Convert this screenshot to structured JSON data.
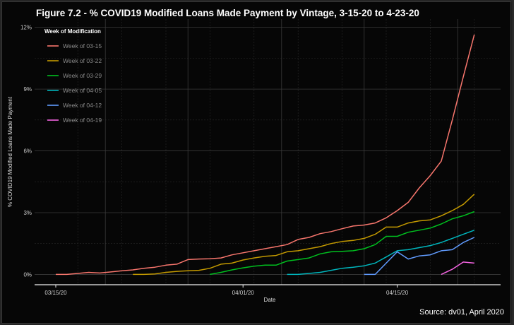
{
  "title": "Figure 7.2 - % COVID19 Modified Loans Made Payment by Vintage, 3-15-20 to 4-23-20",
  "source": "Source: dv01, April 2020",
  "chart_data": {
    "type": "line",
    "title": "Figure 7.2 - % COVID19 Modified Loans Made Payment by Vintage, 3-15-20 to 4-23-20",
    "xlabel": "Date",
    "ylabel": "% COVID19 Modified Loans Made Payment",
    "x_start": "2020-03-15",
    "x_end": "2020-04-23",
    "x_ticks": [
      {
        "date": "2020-03-15",
        "label": "03/15/20"
      },
      {
        "date": "2020-04-01",
        "label": "04/01/20"
      },
      {
        "date": "2020-04-15",
        "label": "04/15/20"
      }
    ],
    "y_ticks": [
      0,
      3,
      6,
      9,
      12
    ],
    "y_tick_labels": [
      "0%",
      "3%",
      "6%",
      "9%",
      "12%"
    ],
    "ylim": [
      -0.5,
      12.4
    ],
    "grid": true,
    "legend": {
      "title": "Week of Modification",
      "position": "top-left"
    },
    "series": [
      {
        "name": "Week of 03-15",
        "color": "#f8766d",
        "x": [
          "2020-03-15",
          "2020-03-16",
          "2020-03-17",
          "2020-03-18",
          "2020-03-19",
          "2020-03-20",
          "2020-03-21",
          "2020-03-22",
          "2020-03-23",
          "2020-03-24",
          "2020-03-25",
          "2020-03-26",
          "2020-03-27",
          "2020-03-28",
          "2020-03-29",
          "2020-03-30",
          "2020-03-31",
          "2020-04-01",
          "2020-04-02",
          "2020-04-03",
          "2020-04-04",
          "2020-04-05",
          "2020-04-06",
          "2020-04-07",
          "2020-04-08",
          "2020-04-09",
          "2020-04-10",
          "2020-04-11",
          "2020-04-12",
          "2020-04-13",
          "2020-04-14",
          "2020-04-15",
          "2020-04-16",
          "2020-04-17",
          "2020-04-18",
          "2020-04-19",
          "2020-04-20",
          "2020-04-21",
          "2020-04-22"
        ],
        "values": [
          0.0,
          0.0,
          0.05,
          0.1,
          0.07,
          0.12,
          0.18,
          0.22,
          0.3,
          0.35,
          0.45,
          0.5,
          0.72,
          0.75,
          0.76,
          0.8,
          0.95,
          1.05,
          1.15,
          1.25,
          1.35,
          1.45,
          1.7,
          1.8,
          1.98,
          2.08,
          2.22,
          2.35,
          2.4,
          2.5,
          2.75,
          3.1,
          3.5,
          4.2,
          4.8,
          5.5,
          7.5,
          9.6,
          11.65
        ]
      },
      {
        "name": "Week of 03-22",
        "color": "#c49a00",
        "x": [
          "2020-03-22",
          "2020-03-23",
          "2020-03-24",
          "2020-03-25",
          "2020-03-26",
          "2020-03-27",
          "2020-03-28",
          "2020-03-29",
          "2020-03-30",
          "2020-03-31",
          "2020-04-01",
          "2020-04-02",
          "2020-04-03",
          "2020-04-04",
          "2020-04-05",
          "2020-04-06",
          "2020-04-07",
          "2020-04-08",
          "2020-04-09",
          "2020-04-10",
          "2020-04-11",
          "2020-04-12",
          "2020-04-13",
          "2020-04-14",
          "2020-04-15",
          "2020-04-16",
          "2020-04-17",
          "2020-04-18",
          "2020-04-19",
          "2020-04-20",
          "2020-04-21",
          "2020-04-22"
        ],
        "values": [
          0.0,
          0.0,
          0.02,
          0.1,
          0.15,
          0.18,
          0.2,
          0.3,
          0.5,
          0.55,
          0.7,
          0.8,
          0.88,
          0.92,
          1.1,
          1.15,
          1.25,
          1.35,
          1.5,
          1.6,
          1.65,
          1.75,
          1.95,
          2.3,
          2.3,
          2.5,
          2.6,
          2.65,
          2.85,
          3.1,
          3.4,
          3.9
        ]
      },
      {
        "name": "Week of 03-29",
        "color": "#00c01f",
        "x": [
          "2020-03-29",
          "2020-03-30",
          "2020-03-31",
          "2020-04-01",
          "2020-04-02",
          "2020-04-03",
          "2020-04-04",
          "2020-04-05",
          "2020-04-06",
          "2020-04-07",
          "2020-04-08",
          "2020-04-09",
          "2020-04-10",
          "2020-04-11",
          "2020-04-12",
          "2020-04-13",
          "2020-04-14",
          "2020-04-15",
          "2020-04-16",
          "2020-04-17",
          "2020-04-18",
          "2020-04-19",
          "2020-04-20",
          "2020-04-21",
          "2020-04-22"
        ],
        "values": [
          0.0,
          0.1,
          0.22,
          0.32,
          0.4,
          0.45,
          0.45,
          0.65,
          0.72,
          0.8,
          1.0,
          1.1,
          1.12,
          1.15,
          1.25,
          1.45,
          1.85,
          1.85,
          2.05,
          2.15,
          2.25,
          2.45,
          2.7,
          2.85,
          3.05
        ]
      },
      {
        "name": "Week of 04-05",
        "color": "#00b6bd",
        "x": [
          "2020-04-05",
          "2020-04-06",
          "2020-04-07",
          "2020-04-08",
          "2020-04-09",
          "2020-04-10",
          "2020-04-11",
          "2020-04-12",
          "2020-04-13",
          "2020-04-14",
          "2020-04-15",
          "2020-04-16",
          "2020-04-17",
          "2020-04-18",
          "2020-04-19",
          "2020-04-20",
          "2020-04-21",
          "2020-04-22"
        ],
        "values": [
          0.0,
          0.0,
          0.05,
          0.1,
          0.2,
          0.3,
          0.35,
          0.42,
          0.55,
          0.85,
          1.15,
          1.2,
          1.3,
          1.4,
          1.55,
          1.75,
          1.95,
          2.15
        ]
      },
      {
        "name": "Week of 04-12",
        "color": "#619cff",
        "x": [
          "2020-04-12",
          "2020-04-13",
          "2020-04-14",
          "2020-04-15",
          "2020-04-16",
          "2020-04-17",
          "2020-04-18",
          "2020-04-19",
          "2020-04-20",
          "2020-04-21",
          "2020-04-22"
        ],
        "values": [
          0.0,
          0.0,
          0.55,
          1.1,
          0.75,
          0.9,
          0.95,
          1.15,
          1.2,
          1.55,
          1.8
        ]
      },
      {
        "name": "Week of 04-19",
        "color": "#f564e3",
        "x": [
          "2020-04-19",
          "2020-04-20",
          "2020-04-21",
          "2020-04-22"
        ],
        "values": [
          0.0,
          0.25,
          0.6,
          0.55
        ]
      }
    ]
  }
}
